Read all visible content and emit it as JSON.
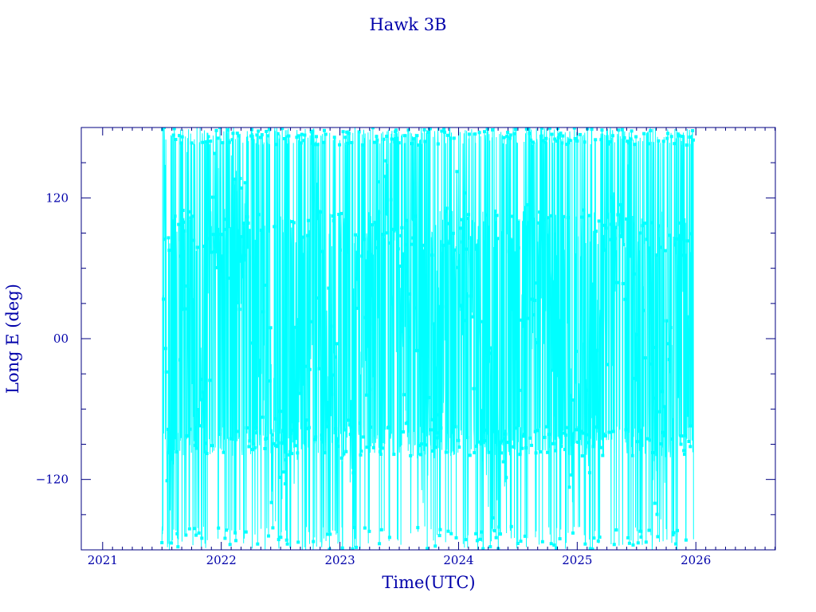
{
  "chart_data": {
    "type": "line",
    "title": "Hawk 3B",
    "xlabel": "Time(UTC)",
    "ylabel": "Long E (deg)",
    "xlim": [
      2020.82,
      2026.67
    ],
    "ylim": [
      -180,
      180
    ],
    "x_ticks": [
      {
        "value": 2021,
        "label": "2021"
      },
      {
        "value": 2022,
        "label": "2022"
      },
      {
        "value": 2023,
        "label": "2023"
      },
      {
        "value": 2024,
        "label": "2024"
      },
      {
        "value": 2025,
        "label": "2025"
      },
      {
        "value": 2026,
        "label": "2026"
      }
    ],
    "y_ticks": [
      {
        "value": 120,
        "label": "120"
      },
      {
        "value": 0,
        "label": "00"
      },
      {
        "value": -120,
        "label": "−120"
      }
    ],
    "grid": false,
    "colors": {
      "frame": "#000080",
      "text": "#0000aa",
      "series": "#00ffff"
    },
    "series": [
      {
        "x_range": [
          2021.5,
          2025.98
        ],
        "values_sampled": [
          {
            "x": 2021.5,
            "y": -38
          },
          {
            "x": 2021.52,
            "y": 160
          },
          {
            "x": 2021.55,
            "y": -170
          },
          {
            "x": 2021.6,
            "y": -100
          },
          {
            "x": 2021.7,
            "y": 110
          },
          {
            "x": 2021.8,
            "y": -95
          },
          {
            "x": 2022.0,
            "y": 150
          },
          {
            "x": 2022.2,
            "y": 80
          },
          {
            "x": 2022.5,
            "y": -120
          },
          {
            "x": 2022.8,
            "y": 60
          },
          {
            "x": 2023.0,
            "y": -90
          },
          {
            "x": 2023.4,
            "y": 100
          },
          {
            "x": 2023.7,
            "y": -85
          },
          {
            "x": 2024.0,
            "y": 95
          },
          {
            "x": 2024.3,
            "y": -95
          },
          {
            "x": 2024.6,
            "y": 70
          },
          {
            "x": 2025.0,
            "y": -95
          },
          {
            "x": 2025.4,
            "y": 100
          },
          {
            "x": 2025.7,
            "y": -95
          },
          {
            "x": 2025.9,
            "y": 60
          },
          {
            "x": 2025.96,
            "y": -85
          }
        ]
      }
    ]
  }
}
